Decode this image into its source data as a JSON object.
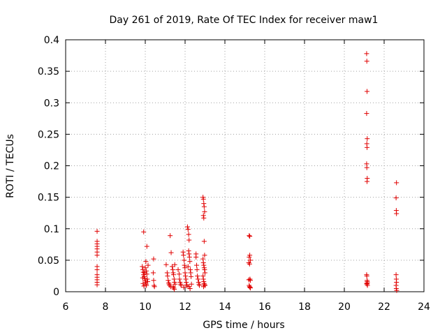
{
  "chart_data": {
    "type": "scatter",
    "title": "Day 261 of 2019, Rate Of TEC Index for receiver maw1",
    "xlabel": "GPS time / hours",
    "ylabel": "ROTI / TECUs",
    "xlim": [
      6,
      24
    ],
    "ylim": [
      0,
      0.4
    ],
    "xticks": [
      6,
      8,
      10,
      12,
      14,
      16,
      18,
      20,
      22,
      24
    ],
    "yticks": [
      0,
      0.05,
      0.1,
      0.15,
      0.2,
      0.25,
      0.3,
      0.35,
      0.4
    ],
    "xtick_labels": [
      "6",
      "8",
      "10",
      "12",
      "14",
      "16",
      "18",
      "20",
      "22",
      "24"
    ],
    "ytick_labels": [
      "0",
      "0.05",
      "0.1",
      "0.15",
      "0.2",
      "0.25",
      "0.3",
      "0.35",
      "0.4"
    ],
    "grid": true,
    "marker_color": "#e00000",
    "marker": "plus",
    "series": [
      {
        "name": "maw1",
        "points": [
          [
            7.58,
            0.096
          ],
          [
            7.58,
            0.08
          ],
          [
            7.58,
            0.076
          ],
          [
            7.58,
            0.072
          ],
          [
            7.58,
            0.068
          ],
          [
            7.58,
            0.063
          ],
          [
            7.58,
            0.058
          ],
          [
            7.58,
            0.04
          ],
          [
            7.58,
            0.035
          ],
          [
            7.58,
            0.027
          ],
          [
            7.58,
            0.023
          ],
          [
            7.58,
            0.019
          ],
          [
            7.58,
            0.015
          ],
          [
            7.58,
            0.011
          ],
          [
            9.92,
            0.095
          ],
          [
            10.08,
            0.072
          ],
          [
            10.42,
            0.052
          ],
          [
            10.03,
            0.048
          ],
          [
            9.85,
            0.04
          ],
          [
            9.88,
            0.035
          ],
          [
            9.9,
            0.031
          ],
          [
            9.92,
            0.027
          ],
          [
            9.95,
            0.024
          ],
          [
            9.97,
            0.021
          ],
          [
            9.99,
            0.018
          ],
          [
            10.02,
            0.015
          ],
          [
            10.04,
            0.012
          ],
          [
            10.06,
            0.01
          ],
          [
            9.87,
            0.022
          ],
          [
            9.93,
            0.009
          ],
          [
            10.0,
            0.038
          ],
          [
            10.05,
            0.033
          ],
          [
            10.08,
            0.028
          ],
          [
            10.1,
            0.02
          ],
          [
            10.12,
            0.016
          ],
          [
            10.14,
            0.042
          ],
          [
            9.89,
            0.013
          ],
          [
            9.96,
            0.03
          ],
          [
            10.4,
            0.03
          ],
          [
            10.42,
            0.018
          ],
          [
            10.44,
            0.01
          ],
          [
            10.46,
            0.008
          ],
          [
            11.25,
            0.089
          ],
          [
            11.3,
            0.062
          ],
          [
            11.05,
            0.043
          ],
          [
            11.1,
            0.03
          ],
          [
            11.12,
            0.025
          ],
          [
            11.15,
            0.018
          ],
          [
            11.18,
            0.014
          ],
          [
            11.2,
            0.012
          ],
          [
            11.22,
            0.01
          ],
          [
            11.28,
            0.008
          ],
          [
            11.35,
            0.04
          ],
          [
            11.38,
            0.035
          ],
          [
            11.4,
            0.03
          ],
          [
            11.42,
            0.027
          ],
          [
            11.45,
            0.02
          ],
          [
            11.47,
            0.015
          ],
          [
            11.5,
            0.012
          ],
          [
            11.4,
            0.008
          ],
          [
            11.43,
            0.006
          ],
          [
            11.46,
            0.004
          ],
          [
            11.48,
            0.043
          ],
          [
            11.65,
            0.035
          ],
          [
            11.7,
            0.028
          ],
          [
            11.72,
            0.02
          ],
          [
            11.75,
            0.015
          ],
          [
            11.78,
            0.012
          ],
          [
            11.8,
            0.01
          ],
          [
            11.9,
            0.063
          ],
          [
            11.92,
            0.058
          ],
          [
            11.95,
            0.05
          ],
          [
            11.97,
            0.042
          ],
          [
            11.99,
            0.038
          ],
          [
            12.0,
            0.03
          ],
          [
            12.02,
            0.025
          ],
          [
            12.04,
            0.02
          ],
          [
            12.06,
            0.015
          ],
          [
            12.08,
            0.011
          ],
          [
            12.1,
            0.009
          ],
          [
            11.93,
            0.007
          ],
          [
            12.12,
            0.103
          ],
          [
            12.15,
            0.099
          ],
          [
            12.18,
            0.091
          ],
          [
            12.2,
            0.082
          ],
          [
            12.18,
            0.065
          ],
          [
            12.2,
            0.06
          ],
          [
            12.22,
            0.055
          ],
          [
            12.24,
            0.048
          ],
          [
            12.26,
            0.035
          ],
          [
            12.28,
            0.03
          ],
          [
            12.3,
            0.024
          ],
          [
            12.32,
            0.012
          ],
          [
            12.2,
            0.008
          ],
          [
            12.25,
            0.005
          ],
          [
            12.15,
            0.04
          ],
          [
            12.55,
            0.055
          ],
          [
            12.58,
            0.042
          ],
          [
            12.6,
            0.035
          ],
          [
            12.62,
            0.025
          ],
          [
            12.65,
            0.02
          ],
          [
            12.68,
            0.015
          ],
          [
            12.7,
            0.012
          ],
          [
            12.72,
            0.01
          ],
          [
            12.55,
            0.06
          ],
          [
            12.9,
            0.15
          ],
          [
            12.92,
            0.147
          ],
          [
            12.94,
            0.14
          ],
          [
            12.96,
            0.135
          ],
          [
            12.98,
            0.127
          ],
          [
            12.92,
            0.121
          ],
          [
            12.94,
            0.117
          ],
          [
            12.96,
            0.08
          ],
          [
            12.98,
            0.058
          ],
          [
            12.9,
            0.052
          ],
          [
            12.92,
            0.046
          ],
          [
            12.94,
            0.042
          ],
          [
            12.96,
            0.038
          ],
          [
            12.98,
            0.035
          ],
          [
            13.0,
            0.03
          ],
          [
            12.9,
            0.025
          ],
          [
            12.92,
            0.02
          ],
          [
            12.94,
            0.016
          ],
          [
            12.96,
            0.013
          ],
          [
            12.98,
            0.011
          ],
          [
            13.0,
            0.01
          ],
          [
            12.93,
            0.008
          ],
          [
            15.22,
            0.089
          ],
          [
            15.25,
            0.088
          ],
          [
            15.25,
            0.058
          ],
          [
            15.22,
            0.055
          ],
          [
            15.28,
            0.05
          ],
          [
            15.2,
            0.046
          ],
          [
            15.24,
            0.044
          ],
          [
            15.26,
            0.02
          ],
          [
            15.28,
            0.018
          ],
          [
            15.22,
            0.01
          ],
          [
            15.24,
            0.008
          ],
          [
            15.26,
            0.007
          ],
          [
            15.28,
            0.006
          ],
          [
            15.2,
            0.019
          ],
          [
            21.12,
            0.378
          ],
          [
            21.13,
            0.366
          ],
          [
            21.14,
            0.318
          ],
          [
            21.12,
            0.283
          ],
          [
            21.15,
            0.243
          ],
          [
            21.13,
            0.235
          ],
          [
            21.14,
            0.229
          ],
          [
            21.12,
            0.203
          ],
          [
            21.13,
            0.197
          ],
          [
            21.15,
            0.18
          ],
          [
            21.14,
            0.175
          ],
          [
            21.12,
            0.027
          ],
          [
            21.13,
            0.025
          ],
          [
            21.14,
            0.018
          ],
          [
            21.15,
            0.016
          ],
          [
            21.16,
            0.014
          ],
          [
            21.12,
            0.013
          ],
          [
            21.14,
            0.012
          ],
          [
            21.16,
            0.01
          ],
          [
            22.62,
            0.173
          ],
          [
            22.6,
            0.149
          ],
          [
            22.61,
            0.129
          ],
          [
            22.62,
            0.124
          ],
          [
            22.6,
            0.027
          ],
          [
            22.61,
            0.02
          ],
          [
            22.62,
            0.015
          ],
          [
            22.6,
            0.01
          ],
          [
            22.61,
            0.005
          ],
          [
            22.63,
            0.002
          ]
        ]
      }
    ]
  }
}
